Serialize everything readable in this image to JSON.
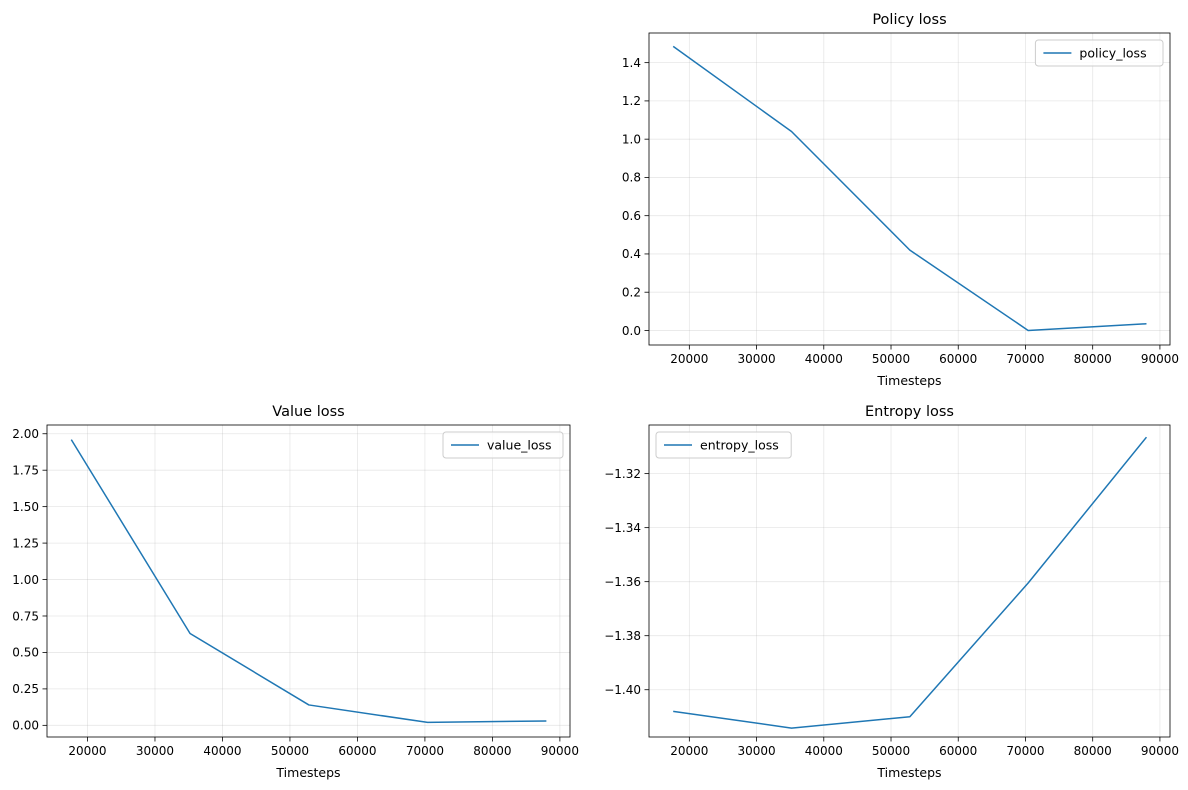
{
  "chart_data": [
    {
      "type": "line",
      "title": "Policy loss",
      "xlabel": "Timesteps",
      "ylabel": "",
      "xlim": [
        14000,
        91500
      ],
      "ylim": [
        -0.076,
        1.555
      ],
      "xticks": [
        20000,
        30000,
        40000,
        50000,
        60000,
        70000,
        80000,
        90000
      ],
      "yticks": [
        0.0,
        0.2,
        0.4,
        0.6,
        0.8,
        1.0,
        1.2,
        1.4
      ],
      "ytick_format": "1",
      "grid": true,
      "legend_position": "upper right",
      "series": [
        {
          "name": "policy_loss",
          "color": "#1f77b4",
          "x": [
            17600,
            35200,
            52800,
            70400,
            88000
          ],
          "y": [
            1.485,
            1.04,
            0.42,
            0.0,
            0.035
          ]
        }
      ]
    },
    {
      "type": "line",
      "title": "Value loss",
      "xlabel": "Timesteps",
      "ylabel": "",
      "xlim": [
        14000,
        91500
      ],
      "ylim": [
        -0.08,
        2.06
      ],
      "xticks": [
        20000,
        30000,
        40000,
        50000,
        60000,
        70000,
        80000,
        90000
      ],
      "yticks": [
        0.0,
        0.25,
        0.5,
        0.75,
        1.0,
        1.25,
        1.5,
        1.75,
        2.0
      ],
      "ytick_format": "2",
      "grid": true,
      "legend_position": "upper right",
      "series": [
        {
          "name": "value_loss",
          "color": "#1f77b4",
          "x": [
            17600,
            35200,
            52800,
            70400,
            88000
          ],
          "y": [
            1.96,
            0.63,
            0.14,
            0.02,
            0.03
          ]
        }
      ]
    },
    {
      "type": "line",
      "title": "Entropy loss",
      "xlabel": "Timesteps",
      "ylabel": "",
      "xlim": [
        14000,
        91500
      ],
      "ylim": [
        -1.4175,
        -1.302
      ],
      "xticks": [
        20000,
        30000,
        40000,
        50000,
        60000,
        70000,
        80000,
        90000
      ],
      "yticks": [
        -1.4,
        -1.38,
        -1.36,
        -1.34,
        -1.32
      ],
      "ytick_format": "2minus",
      "grid": true,
      "legend_position": "upper left",
      "series": [
        {
          "name": "entropy_loss",
          "color": "#1f77b4",
          "x": [
            17600,
            35200,
            52800,
            70400,
            88000
          ],
          "y": [
            -1.408,
            -1.4142,
            -1.41,
            -1.3605,
            -1.3065
          ]
        }
      ]
    }
  ]
}
